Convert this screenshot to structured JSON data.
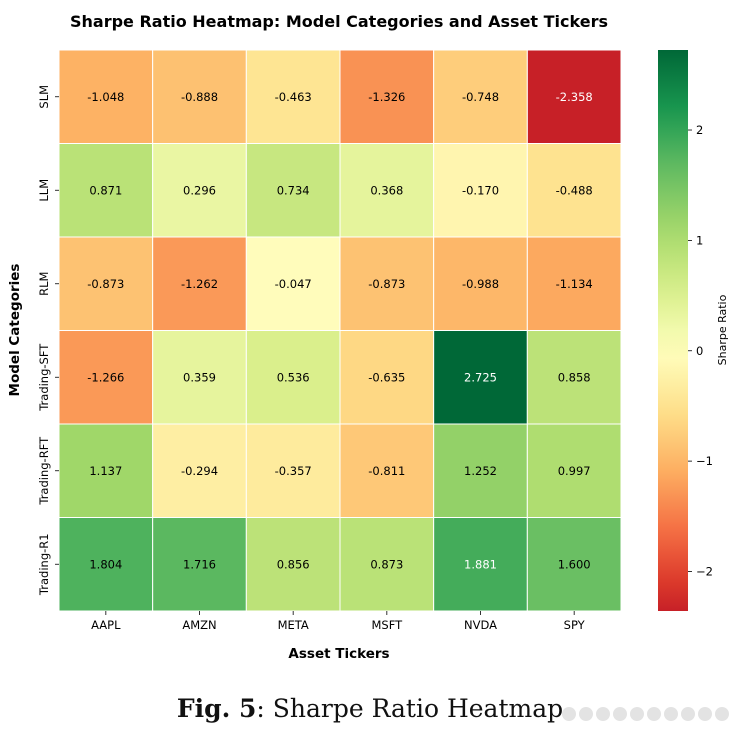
{
  "chart_data": {
    "type": "heatmap",
    "title": "Sharpe Ratio Heatmap: Model Categories and Asset Tickers",
    "xlabel": "Asset Tickers",
    "ylabel": "Model Categories",
    "x_categories": [
      "AAPL",
      "AMZN",
      "META",
      "MSFT",
      "NVDA",
      "SPY"
    ],
    "y_categories": [
      "SLM",
      "LLM",
      "RLM",
      "Trading-SFT",
      "Trading-RFT",
      "Trading-R1"
    ],
    "values": [
      [
        -1.048,
        -0.888,
        -0.463,
        -1.326,
        -0.748,
        -2.358
      ],
      [
        0.871,
        0.296,
        0.734,
        0.368,
        -0.17,
        -0.488
      ],
      [
        -0.873,
        -1.262,
        -0.047,
        -0.873,
        -0.988,
        -1.134
      ],
      [
        -1.266,
        0.359,
        0.536,
        -0.635,
        2.725,
        0.858
      ],
      [
        1.137,
        -0.294,
        -0.357,
        -0.811,
        1.252,
        0.997
      ],
      [
        1.804,
        1.716,
        0.856,
        0.873,
        1.881,
        1.6
      ]
    ],
    "value_labels": [
      [
        "-1.048",
        "-0.888",
        "-0.463",
        "-1.326",
        "-0.748",
        "-2.358"
      ],
      [
        "0.871",
        "0.296",
        "0.734",
        "0.368",
        "-0.170",
        "-0.488"
      ],
      [
        "-0.873",
        "-1.262",
        "-0.047",
        "-0.873",
        "-0.988",
        "-1.134"
      ],
      [
        "-1.266",
        "0.359",
        "0.536",
        "-0.635",
        "2.725",
        "0.858"
      ],
      [
        "1.137",
        "-0.294",
        "-0.357",
        "-0.811",
        "1.252",
        "0.997"
      ],
      [
        "1.804",
        "1.716",
        "0.856",
        "0.873",
        "1.881",
        "1.600"
      ]
    ],
    "colormap": "RdYlGn",
    "center": 0,
    "vmin": -2.358,
    "vmax": 2.725,
    "colorbar": {
      "label": "Sharpe Ratio",
      "ticks": [
        2,
        1,
        0,
        -1,
        -2
      ],
      "tick_labels": [
        "2",
        "1",
        "0",
        "−1",
        "−2"
      ]
    }
  },
  "caption": {
    "prefix": "Fig. 5",
    "text": ": Sharpe Ratio Heatmap"
  }
}
